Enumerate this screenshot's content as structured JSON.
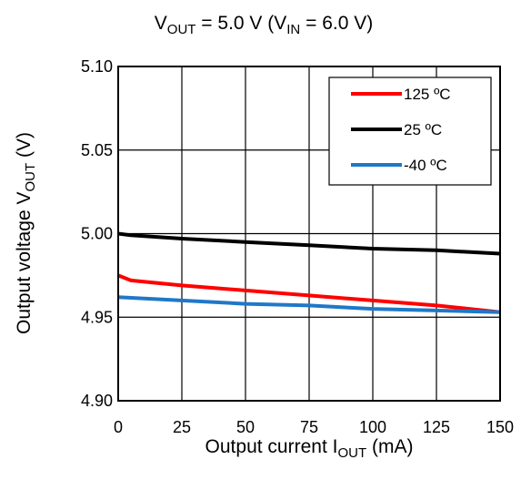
{
  "chart_data": {
    "type": "line",
    "title": {
      "v": "V",
      "out": "OUT",
      "mid": " = 5.0 V (V",
      "in": "IN",
      "end": " = 6.0 V)"
    },
    "xlabel": {
      "main": "Output current I",
      "sub": "OUT",
      "unit": " (mA)"
    },
    "ylabel": {
      "main": "Output voltage V",
      "sub": "OUT",
      "unit": " (V)"
    },
    "xlim": [
      0,
      150
    ],
    "ylim": [
      4.9,
      5.1
    ],
    "x_ticks": [
      "0",
      "25",
      "50",
      "75",
      "100",
      "125",
      "150"
    ],
    "y_ticks": [
      "5.10",
      "5.05",
      "5.00",
      "4.95",
      "4.90"
    ],
    "grid": true,
    "legend_position": "top-right",
    "series": [
      {
        "name": "125 ºC",
        "color": "#ff0000",
        "points": [
          [
            0,
            4.975
          ],
          [
            5,
            4.972
          ],
          [
            25,
            4.969
          ],
          [
            50,
            4.966
          ],
          [
            75,
            4.963
          ],
          [
            100,
            4.96
          ],
          [
            125,
            4.957
          ],
          [
            150,
            4.953
          ]
        ]
      },
      {
        "name": "25 ºC",
        "color": "#000000",
        "points": [
          [
            0,
            5.0
          ],
          [
            5,
            4.999
          ],
          [
            25,
            4.997
          ],
          [
            50,
            4.995
          ],
          [
            75,
            4.993
          ],
          [
            100,
            4.991
          ],
          [
            125,
            4.99
          ],
          [
            150,
            4.988
          ]
        ]
      },
      {
        "name": "-40 ºC",
        "color": "#1f78c8",
        "points": [
          [
            0,
            4.962
          ],
          [
            25,
            4.96
          ],
          [
            50,
            4.958
          ],
          [
            75,
            4.957
          ],
          [
            100,
            4.955
          ],
          [
            125,
            4.954
          ],
          [
            150,
            4.953
          ]
        ]
      }
    ]
  }
}
